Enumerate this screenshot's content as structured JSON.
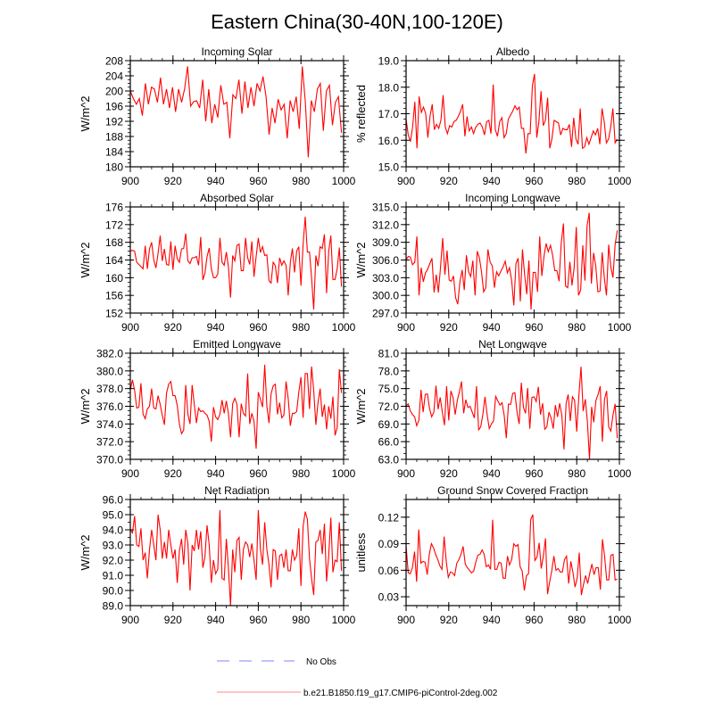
{
  "title": "Eastern China(30-40N,100-120E)",
  "legend": {
    "entries": [
      {
        "label": "No Obs",
        "color": "#a9aefc",
        "style": "dashed"
      },
      {
        "label": "b.e21.B1850.f19_g17.CMIP6-piControl-2deg.002",
        "color": "#ffb0b0",
        "style": "solid"
      }
    ]
  },
  "line_color": "#ff0000",
  "chart_data": [
    {
      "type": "line",
      "title": "Incoming Solar",
      "ylabel": "W/m^2",
      "xlim": [
        900,
        1000
      ],
      "x_range": [
        900,
        999
      ],
      "xticks": [
        "900",
        "920",
        "940",
        "960",
        "980",
        "1000"
      ],
      "ylim": [
        180,
        208
      ],
      "yticks": [
        "180",
        "184",
        "188",
        "192",
        "196",
        "200",
        "204",
        "208"
      ],
      "yminor": 1,
      "values": [
        200,
        198,
        196.5,
        198,
        193.5,
        202,
        196.5,
        201,
        200.5,
        197,
        203.5,
        196.5,
        200.5,
        195.5,
        201,
        194.5,
        200.5,
        197,
        200.5,
        206.5,
        196,
        197.2,
        197.4,
        195.5,
        203,
        192,
        200.5,
        191.5,
        196.5,
        193,
        201.5,
        196.5,
        197,
        187.5,
        199,
        198,
        203,
        194,
        202.5,
        195.5,
        201,
        196,
        202,
        200,
        203.8,
        198.5,
        188.5,
        195.5,
        191.5,
        197.8,
        195,
        196.5,
        187.5,
        197.5,
        194.5,
        198.5,
        190,
        206.5,
        197.5,
        182.5,
        197.5,
        194.5,
        200.5,
        202,
        189.5,
        200,
        201.5,
        191,
        197,
        198.5,
        189
      ]
    },
    {
      "type": "line",
      "title": "Albedo",
      "ylabel": "% reflected",
      "xlim": [
        900,
        1000
      ],
      "x_range": [
        900,
        999
      ],
      "xticks": [
        "900",
        "920",
        "940",
        "960",
        "980",
        "1000"
      ],
      "ylim": [
        15,
        19
      ],
      "yticks": [
        "15.0",
        "16.0",
        "17.0",
        "18.0",
        "19.0"
      ],
      "yminor": 0.2,
      "values": [
        16.8,
        16.2,
        15.95,
        16.5,
        17.45,
        15.7,
        17.65,
        17.05,
        17.25,
        17.0,
        16.1,
        16.9,
        17.35,
        16.4,
        16.6,
        16.45,
        16.75,
        17.7,
        16.5,
        16.25,
        16.55,
        16.5,
        16.7,
        16.75,
        16.9,
        17.1,
        17.35,
        16.15,
        16.9,
        16.35,
        16.5,
        16.25,
        16.5,
        16.6,
        16.65,
        16.5,
        16.2,
        16.7,
        16.75,
        16.25,
        18.1,
        16.4,
        16.15,
        16.7,
        16.85,
        16.1,
        16.25,
        16.8,
        16.95,
        17.1,
        17.3,
        17.15,
        17.25,
        16.45,
        16.45,
        15.5,
        16.25,
        16.25,
        18.05,
        18.5,
        16.1,
        16.7,
        17.85,
        16.55,
        16.75,
        17.6,
        15.7,
        16.05,
        16.75,
        16.7,
        16.65,
        16.2,
        16.45,
        16.4,
        16.4,
        16.6,
        15.75,
        16.85,
        16.05,
        15.85,
        17.2,
        15.7,
        15.75,
        16.1,
        15.85,
        16.1,
        16.35,
        16.2,
        16.45,
        15.85,
        17.2,
        16.7,
        15.9,
        16.05,
        16.5,
        17.2,
        15.9,
        16.05
      ]
    },
    {
      "type": "line",
      "title": "Absorbed Solar",
      "ylabel": "W/m^2",
      "xlim": [
        900,
        1000
      ],
      "x_range": [
        900,
        999
      ],
      "xticks": [
        "900",
        "920",
        "940",
        "960",
        "980",
        "1000"
      ],
      "ylim": [
        152,
        176
      ],
      "yticks": [
        "152",
        "156",
        "160",
        "164",
        "168",
        "172",
        "176"
      ],
      "yminor": 1,
      "values": [
        166,
        166.2,
        166,
        163.5,
        163,
        162.5,
        162,
        167.2,
        162,
        166.5,
        168,
        164,
        162.2,
        165.5,
        169.5,
        163.8,
        166.5,
        163,
        162.8,
        168.2,
        161.8,
        167.2,
        164.3,
        163.5,
        166.5,
        166.6,
        170,
        163.8,
        163.2,
        164.5,
        164.5,
        164.8,
        162.8,
        169.2,
        159.5,
        161,
        164.8,
        166.7,
        162,
        160,
        160,
        160.8,
        169,
        163.5,
        162.8,
        165.8,
        162.5,
        155.5,
        165,
        163.8,
        167.3,
        167.6,
        161.6,
        161.6,
        169,
        164.5,
        163,
        168.2,
        160.2,
        164.8,
        169,
        165.7,
        167,
        165,
        165.2,
        159.3,
        158.8,
        163.5,
        162.7,
        158.8,
        164.5,
        162.8,
        163.8,
        162.8,
        156,
        163.5,
        166.6,
        161.2,
        166,
        167,
        158.2,
        167.5,
        173.8,
        165.8,
        165.8,
        160,
        152.8,
        165,
        162.6,
        167,
        166.6,
        169.8,
        156.5,
        166,
        169.5,
        159.6,
        159.6,
        162,
        166.8,
        158
      ]
    },
    {
      "type": "line",
      "title": "Incoming Longwave",
      "ylabel": "W/m^2",
      "xlim": [
        900,
        1000
      ],
      "x_range": [
        900,
        999
      ],
      "xticks": [
        "900",
        "920",
        "940",
        "960",
        "980",
        "1000"
      ],
      "ylim": [
        297,
        315
      ],
      "yticks": [
        "297.0",
        "300.0",
        "303.0",
        "306.0",
        "309.0",
        "312.0",
        "315.0"
      ],
      "yminor": 1,
      "values": [
        306,
        306.6,
        306.5,
        305.2,
        305.6,
        310,
        300,
        304.7,
        302.3,
        303.8,
        304.4,
        305.4,
        306.3,
        300.5,
        303.5,
        300.5,
        304.8,
        309.7,
        303.5,
        307.6,
        302.6,
        302.4,
        303.3,
        299.6,
        298.5,
        302.4,
        304.3,
        300.9,
        306.8,
        304,
        303.2,
        305.9,
        300,
        307.5,
        306.4,
        304,
        300.6,
        301.3,
        307.8,
        305.6,
        305,
        301.3,
        304,
        303.3,
        304.1,
        304.8,
        305.8,
        303.8,
        304.7,
        302.5,
        298.3,
        305.4,
        306.3,
        299,
        307.8,
        303.5,
        300.2,
        305.9,
        297.6,
        303.9,
        303.9,
        300.6,
        310,
        303.3,
        306.6,
        308.8,
        307.4,
        308.5,
        306.8,
        304.2,
        304.2,
        302.4,
        308.8,
        312.2,
        301.6,
        301.3,
        305.7,
        301.7,
        304.7,
        311.6,
        300,
        300.9,
        308.5,
        302.5,
        311.8,
        314,
        302,
        307.2,
        305,
        300.6,
        300.7,
        307.3,
        303,
        300,
        308.6,
        304.8,
        303,
        308.6,
        311
      ]
    },
    {
      "type": "line",
      "title": "Emitted Longwave",
      "ylabel": "W/m^2",
      "xlim": [
        900,
        1000
      ],
      "x_range": [
        900,
        999
      ],
      "xticks": [
        "900",
        "920",
        "940",
        "960",
        "980",
        "1000"
      ],
      "ylim": [
        370,
        382
      ],
      "yticks": [
        "370.0",
        "372.0",
        "374.0",
        "376.0",
        "378.0",
        "380.0",
        "382.0"
      ],
      "yminor": 0.5,
      "values": [
        377.8,
        379,
        377.8,
        375.8,
        375.9,
        378.6,
        375.1,
        374.6,
        375.7,
        376,
        378,
        375.8,
        375.7,
        377.2,
        376.2,
        375,
        373.9,
        377.5,
        378.5,
        378.8,
        377.2,
        377.2,
        376.1,
        374,
        372.9,
        373.3,
        378.4,
        375.1,
        374,
        378.4,
        376.2,
        374.1,
        375.8,
        375.4,
        375.5,
        375.2,
        375,
        374.3,
        372,
        375.9,
        374.8,
        374.5,
        375.1,
        376.7,
        375.2,
        376.6,
        375.2,
        372.5,
        376.3,
        376.9,
        376.2,
        372.5,
        376.3,
        375.2,
        374.9,
        379.7,
        374,
        375.2,
        374.3,
        371.2,
        377.6,
        376.8,
        375.9,
        380.7,
        376,
        374.1,
        377.4,
        378.3,
        378.5,
        375.1,
        376.4,
        374.7,
        375,
        378.8,
        376.9,
        373.8,
        375.2,
        375.2,
        375.4,
        377.6,
        379.3,
        374.7,
        379.7,
        379.7,
        375.7,
        380.5,
        377.8,
        373.9,
        376.4,
        378,
        374.8,
        376.2,
        373.4,
        376,
        374.6,
        377.1,
        372.7,
        373.6,
        380.2,
        377.5
      ]
    },
    {
      "type": "line",
      "title": "Net Longwave",
      "ylabel": "W/m^2",
      "xlim": [
        900,
        1000
      ],
      "x_range": [
        900,
        999
      ],
      "xticks": [
        "900",
        "920",
        "940",
        "960",
        "980",
        "1000"
      ],
      "ylim": [
        63,
        81
      ],
      "yticks": [
        "63.0",
        "66.0",
        "69.0",
        "72.0",
        "75.0",
        "78.0",
        "81.0"
      ],
      "yminor": 1,
      "values": [
        72.1,
        72.4,
        71.2,
        70.6,
        70.2,
        68.7,
        69.6,
        74.8,
        71,
        74,
        74.1,
        71.6,
        70.2,
        71,
        75.5,
        71.5,
        73.5,
        71,
        68.8,
        75.4,
        69.6,
        74.6,
        73.5,
        70.6,
        73,
        74.5,
        76.2,
        70.8,
        73.1,
        71.8,
        72,
        71,
        70,
        75.4,
        68,
        68.5,
        70.6,
        73.6,
        70.6,
        68.2,
        69,
        69.5,
        73.7,
        72.9,
        72.2,
        72.6,
        70.5,
        66.6,
        72.4,
        72.3,
        74.2,
        74.3,
        71,
        69,
        76,
        71.8,
        70.8,
        75.1,
        68.2,
        73.5,
        73.6,
        72.8,
        75.3,
        70.6,
        72.5,
        68.1,
        68.5,
        71,
        70,
        68.2,
        72.2,
        70.2,
        72.5,
        70.5,
        64.7,
        72.5,
        74,
        69.5,
        73.6,
        73,
        67.7,
        73.8,
        78.7,
        71.2,
        73.2,
        69.5,
        63,
        71.9,
        69.3,
        73,
        74,
        75.4,
        66,
        73.2,
        74.6,
        68.5,
        67.8,
        70.5,
        72.4,
        66.6
      ]
    },
    {
      "type": "line",
      "title": "Net Radiation",
      "ylabel": "W/m^2",
      "xlim": [
        900,
        1000
      ],
      "x_range": [
        900,
        999
      ],
      "xticks": [
        "900",
        "920",
        "940",
        "960",
        "980",
        "1000"
      ],
      "ylim": [
        89,
        96
      ],
      "yticks": [
        "89.0",
        "90.0",
        "91.0",
        "92.0",
        "93.0",
        "94.0",
        "95.0",
        "96.0"
      ],
      "yminor": 0.5,
      "values": [
        94,
        93.8,
        94.9,
        93,
        92.9,
        94.1,
        92,
        92.5,
        90.8,
        92.7,
        94,
        93,
        92,
        95,
        94,
        92.1,
        93.2,
        92.1,
        94,
        93,
        92.1,
        92.7,
        90.5,
        92.6,
        93.4,
        91.7,
        94,
        93.1,
        90,
        93,
        92.6,
        94,
        92.7,
        93.9,
        91.5,
        92.2,
        94.3,
        93,
        90.5,
        92,
        91.1,
        91.4,
        95.3,
        90.8,
        90.7,
        93.4,
        91.5,
        89,
        92.7,
        91.2,
        93.3,
        93.5,
        90.7,
        92.7,
        93.2,
        93,
        92.2,
        93.1,
        92,
        90.7,
        95.3,
        92.7,
        91.7,
        94.5,
        92.7,
        91.7,
        90.2,
        92.7,
        92.6,
        90.7,
        92.3,
        92.4,
        91.5,
        92.7,
        91.3,
        91.3,
        92.7,
        92,
        92.3,
        94.1,
        90.3,
        94.2,
        95.2,
        94.7,
        92.1,
        90.8,
        89.7,
        93.2,
        93.3,
        94,
        92.4,
        94.4,
        90.6,
        92.3,
        94.8,
        91.2,
        92,
        91.9,
        94.5,
        91.3
      ]
    },
    {
      "type": "line",
      "title": "Ground Snow Covered Fraction",
      "ylabel": "unitless",
      "xlim": [
        900,
        1000
      ],
      "x_range": [
        900,
        999
      ],
      "xticks": [
        "900",
        "920",
        "940",
        "960",
        "980",
        "1000"
      ],
      "ylim": [
        0.02,
        0.14
      ],
      "yticks": [
        "0.03",
        "0.06",
        "0.09",
        "0.12"
      ],
      "yminor": 0.01,
      "values": [
        0.088,
        0.057,
        0.056,
        0.063,
        0.081,
        0.047,
        0.106,
        0.068,
        0.07,
        0.069,
        0.055,
        0.078,
        0.09,
        0.085,
        0.078,
        0.072,
        0.065,
        0.061,
        0.098,
        0.07,
        0.052,
        0.058,
        0.057,
        0.054,
        0.068,
        0.072,
        0.078,
        0.087,
        0.067,
        0.063,
        0.06,
        0.057,
        0.059,
        0.069,
        0.077,
        0.078,
        0.083,
        0.078,
        0.064,
        0.066,
        0.061,
        0.117,
        0.061,
        0.061,
        0.069,
        0.068,
        0.051,
        0.051,
        0.076,
        0.066,
        0.072,
        0.09,
        0.087,
        0.089,
        0.064,
        0.059,
        0.037,
        0.054,
        0.056,
        0.117,
        0.123,
        0.071,
        0.075,
        0.091,
        0.062,
        0.076,
        0.096,
        0.033,
        0.047,
        0.06,
        0.076,
        0.06,
        0.062,
        0.058,
        0.058,
        0.072,
        0.076,
        0.045,
        0.07,
        0.058,
        0.041,
        0.051,
        0.08,
        0.032,
        0.044,
        0.054,
        0.045,
        0.057,
        0.067,
        0.055,
        0.063,
        0.063,
        0.038,
        0.095,
        0.076,
        0.049,
        0.049,
        0.077,
        0.078,
        0.049,
        0.05
      ]
    }
  ]
}
